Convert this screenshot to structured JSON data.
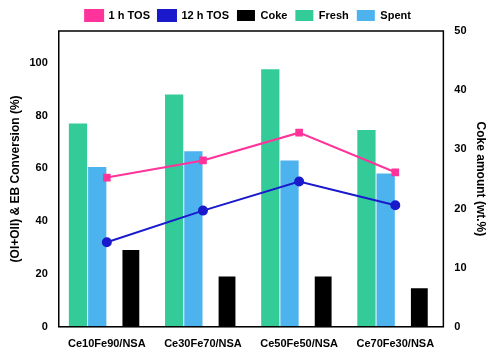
{
  "chart_data": {
    "type": "bar",
    "categories": [
      "Ce10Fe90/NSA",
      "Ce30Fe70/NSA",
      "Ce50Fe50/NSA",
      "Ce70Fe30/NSA"
    ],
    "y_label": "(OI+OII) & EB Conversion (%)",
    "y2_label": "Coke amount (wt.%)",
    "ylim": [
      0,
      112
    ],
    "yticks": [
      0,
      20,
      40,
      60,
      80,
      100
    ],
    "y2lim": [
      0,
      50
    ],
    "y2ticks": [
      0,
      10,
      20,
      30,
      40,
      50
    ],
    "grid": false,
    "legend": "top",
    "series": [
      {
        "name": "Fresh",
        "type": "bar",
        "color": "#33cc99",
        "values": [
          77,
          88,
          97.5,
          74.5
        ]
      },
      {
        "name": "Spent",
        "type": "bar",
        "color": "#4db3ee",
        "values": [
          60.5,
          66.5,
          63,
          58
        ]
      },
      {
        "name": "1 h TOS",
        "type": "line",
        "color": "#ff3399",
        "marker": "square",
        "values": [
          56.5,
          63,
          73.5,
          58.5
        ]
      },
      {
        "name": "12 h TOS",
        "type": "line",
        "color": "#1a1acc",
        "marker": "circle",
        "values": [
          32,
          44,
          55,
          46
        ]
      },
      {
        "name": "Coke",
        "type": "bar",
        "axis": "y2",
        "color": "#000000",
        "values": [
          13,
          8.5,
          8.5,
          6.5
        ]
      }
    ]
  }
}
